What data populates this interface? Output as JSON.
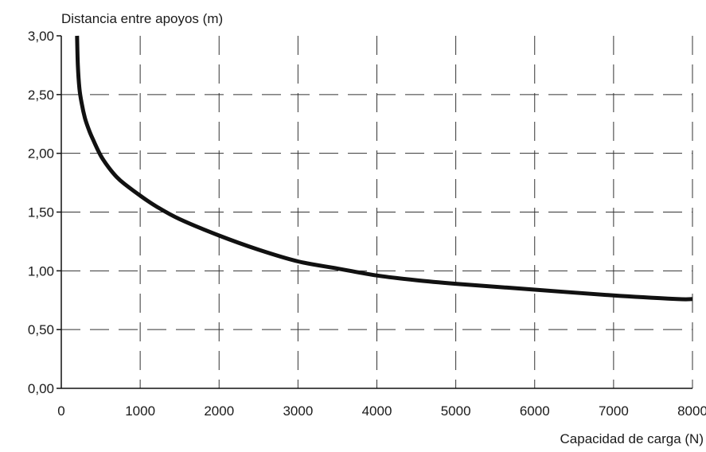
{
  "chart_data": {
    "type": "line",
    "title": "",
    "ylabel": "Distancia entre apoyos (m)",
    "xlabel": "Capacidad de carga (N)",
    "xlim": [
      0,
      8000
    ],
    "ylim": [
      0,
      3
    ],
    "x_ticks": [
      0,
      1000,
      2000,
      3000,
      4000,
      5000,
      6000,
      7000,
      8000
    ],
    "x_tick_labels": [
      "0",
      "1000",
      "2000",
      "3000",
      "4000",
      "5000",
      "6000",
      "7000",
      "8000"
    ],
    "y_ticks": [
      0,
      0.5,
      1,
      1.5,
      2,
      2.5,
      3
    ],
    "y_tick_labels": [
      "0,00",
      "0,50",
      "1,00",
      "1,50",
      "2,00",
      "2,50",
      "3,00"
    ],
    "grid": true,
    "grid_style": "dashed",
    "series": [
      {
        "color": "#111111",
        "x": [
          200,
          210,
          230,
          260,
          300,
          350,
          400,
          500,
          600,
          700,
          800,
          1000,
          1200,
          1500,
          2000,
          2500,
          3000,
          3500,
          4000,
          4500,
          5000,
          6000,
          7000,
          7800,
          8000
        ],
        "y": [
          3.0,
          2.75,
          2.55,
          2.42,
          2.3,
          2.2,
          2.12,
          1.98,
          1.88,
          1.8,
          1.74,
          1.64,
          1.55,
          1.44,
          1.3,
          1.18,
          1.08,
          1.02,
          0.96,
          0.92,
          0.89,
          0.84,
          0.79,
          0.76,
          0.76
        ]
      }
    ]
  }
}
